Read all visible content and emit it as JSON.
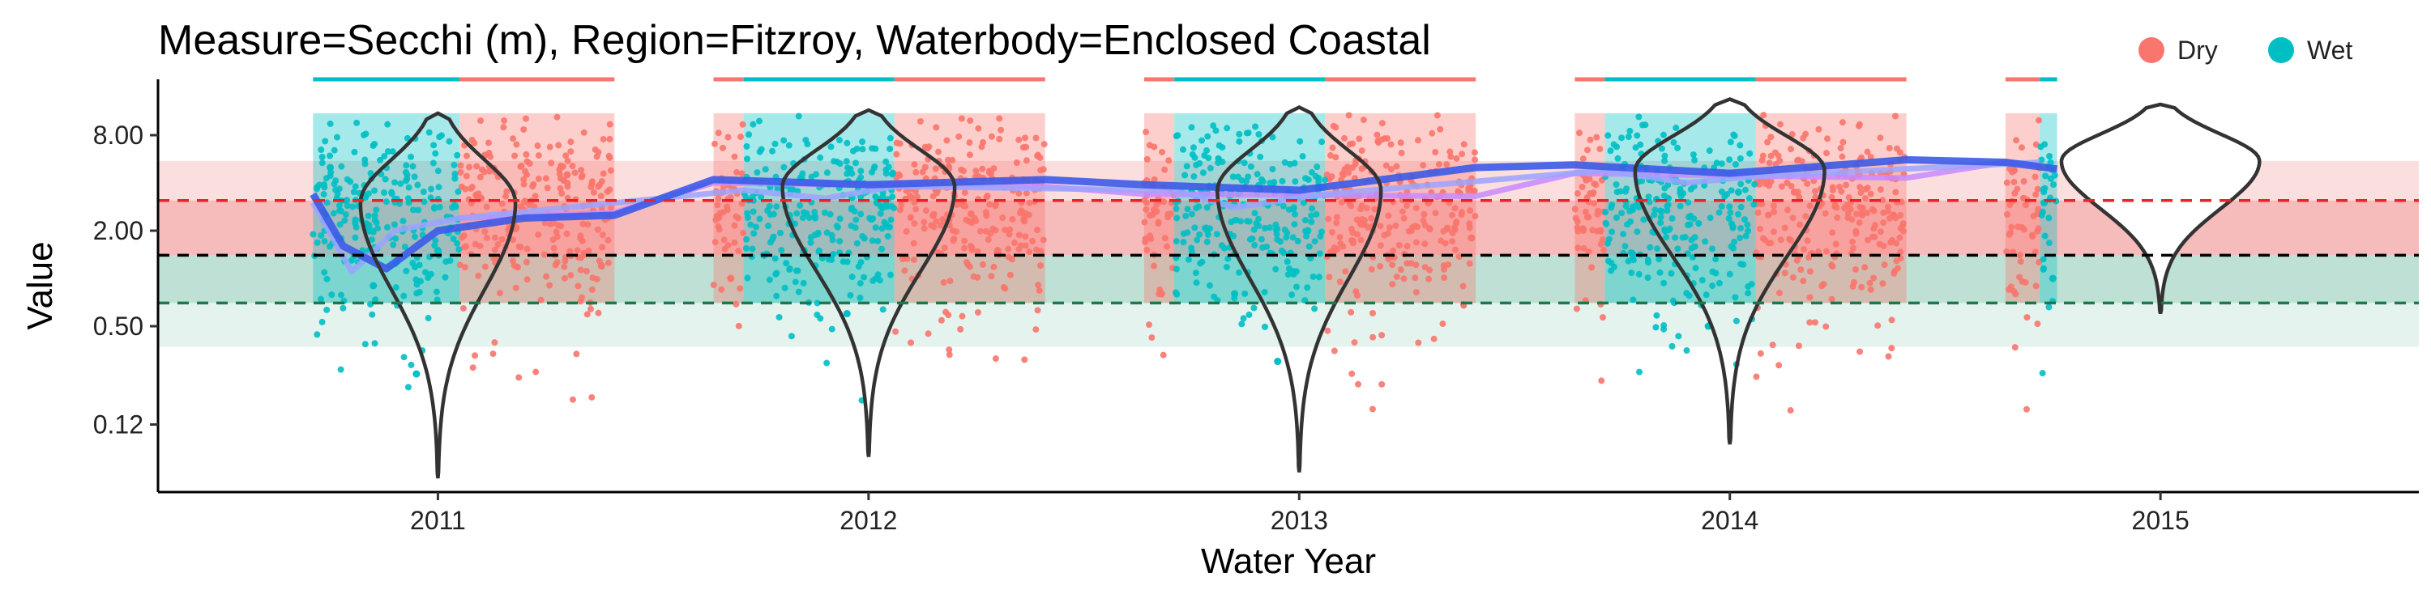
{
  "chart_data": {
    "type": "scatter",
    "title": "Measure=Secchi (m), Region=Fitzroy, Waterbody=Enclosed Coastal",
    "xlabel": "Water Year",
    "ylabel": "Value",
    "y_scale": "log2",
    "ylim": [
      0.045,
      18
    ],
    "yticks": [
      0.12,
      0.5,
      2.0,
      8.0
    ],
    "ytick_labels": [
      "0.12",
      "0.50",
      "2.00",
      "8.00"
    ],
    "xlim": [
      2010.35,
      2015.6
    ],
    "xticks": [
      2011,
      2012,
      2013,
      2014,
      2015
    ],
    "xtick_labels": [
      "2011",
      "2012",
      "2013",
      "2014",
      "2015"
    ],
    "grid": false,
    "legend": {
      "position": "top-right",
      "entries": [
        {
          "name": "Dry",
          "color": "#F8766D"
        },
        {
          "name": "Wet",
          "color": "#00BFC4"
        }
      ]
    },
    "reference_lines": [
      {
        "y": 3.1,
        "color": "#E8242A",
        "style": "dashed"
      },
      {
        "y": 1.4,
        "color": "#000000",
        "style": "dashed"
      },
      {
        "y": 0.7,
        "color": "#1A7A4C",
        "style": "dashed"
      }
    ],
    "reference_bands": [
      {
        "y": [
          3.1,
          5.5
        ],
        "color": "#F9D4D4"
      },
      {
        "y": [
          1.4,
          3.1
        ],
        "color": "#F3A4A4"
      },
      {
        "y": [
          0.7,
          1.4
        ],
        "color": "#A9D6C6"
      },
      {
        "y": [
          0.37,
          0.7
        ],
        "color": "#DCEFE8"
      }
    ],
    "seasons": [
      {
        "year": 2011,
        "wet": [
          2010.71,
          2011.05
        ],
        "dry": [
          2011.05,
          2011.41
        ]
      },
      {
        "year": 2012,
        "dry": [
          2011.64,
          2011.71
        ],
        "wet": [
          2011.71,
          2012.06
        ],
        "dry2": [
          2012.06,
          2012.41
        ]
      },
      {
        "year": 2013,
        "dry": [
          2012.64,
          2012.71
        ],
        "wet": [
          2012.71,
          2013.06
        ],
        "dry2": [
          2013.06,
          2013.41
        ]
      },
      {
        "year": 2014,
        "dry": [
          2013.64,
          2013.71
        ],
        "wet": [
          2013.71,
          2014.06
        ],
        "dry2": [
          2014.06,
          2014.41
        ]
      },
      {
        "year": 2015,
        "dry": [
          2014.64,
          2014.72
        ],
        "wet": [
          2014.72,
          2014.76
        ]
      }
    ],
    "series": [
      {
        "name": "Dry",
        "color": "#F8766D",
        "data": [
          [
            2011.1,
            3.2
          ],
          [
            2011.2,
            2.5
          ],
          [
            2011.3,
            4.5
          ],
          [
            2011.38,
            1.2
          ],
          [
            2011.66,
            3.5
          ],
          [
            2011.68,
            1.0
          ],
          [
            2012.15,
            2.5
          ],
          [
            2012.3,
            1.5
          ],
          [
            2012.4,
            4.0
          ],
          [
            2012.66,
            3.8
          ],
          [
            2012.68,
            0.8
          ],
          [
            2013.15,
            2.2
          ],
          [
            2013.3,
            3.0
          ],
          [
            2013.4,
            1.8
          ],
          [
            2013.66,
            4.5
          ],
          [
            2013.7,
            2.0
          ],
          [
            2014.15,
            3.5
          ],
          [
            2014.3,
            4.5
          ],
          [
            2014.38,
            2.5
          ],
          [
            2014.66,
            4.8
          ]
        ]
      },
      {
        "name": "Wet",
        "color": "#00BFC4",
        "data": [
          [
            2010.75,
            5.0
          ],
          [
            2010.85,
            0.9
          ],
          [
            2010.95,
            0.25
          ],
          [
            2011.0,
            1.5
          ],
          [
            2011.75,
            4.0
          ],
          [
            2011.85,
            1.5
          ],
          [
            2011.95,
            0.6
          ],
          [
            2012.02,
            3.0
          ],
          [
            2012.75,
            3.5
          ],
          [
            2012.85,
            0.8
          ],
          [
            2012.95,
            0.3
          ],
          [
            2013.02,
            2.0
          ],
          [
            2013.75,
            5.0
          ],
          [
            2013.85,
            2.0
          ],
          [
            2013.95,
            0.5
          ],
          [
            2014.02,
            3.5
          ],
          [
            2014.73,
            3.0
          ],
          [
            2014.75,
            1.0
          ]
        ]
      }
    ],
    "trend_lines": [
      {
        "name": "Dry smoother",
        "color": "#C78BFF",
        "points": [
          [
            2011.05,
            2.4
          ],
          [
            2011.41,
            2.6
          ],
          [
            2011.64,
            4.0
          ],
          [
            2012.41,
            3.8
          ],
          [
            2012.64,
            3.4
          ],
          [
            2013.41,
            3.3
          ],
          [
            2013.64,
            4.6
          ],
          [
            2014.41,
            4.3
          ],
          [
            2014.64,
            5.4
          ],
          [
            2014.72,
            5.2
          ]
        ]
      },
      {
        "name": "Wet smoother",
        "color": "#9BA3FF",
        "points": [
          [
            2010.71,
            3.0
          ],
          [
            2010.8,
            1.1
          ],
          [
            2010.9,
            2.0
          ],
          [
            2011.05,
            2.4
          ],
          [
            2011.71,
            3.6
          ],
          [
            2011.9,
            3.2
          ],
          [
            2012.06,
            3.8
          ],
          [
            2012.71,
            3.6
          ],
          [
            2012.85,
            2.8
          ],
          [
            2013.06,
            3.4
          ],
          [
            2013.71,
            4.8
          ],
          [
            2013.9,
            4.0
          ],
          [
            2014.06,
            4.4
          ],
          [
            2014.72,
            5.4
          ]
        ]
      },
      {
        "name": "Overall smoother",
        "color": "#3B5BE8",
        "points": [
          [
            2010.71,
            3.4
          ],
          [
            2010.78,
            1.6
          ],
          [
            2010.88,
            1.15
          ],
          [
            2011.0,
            2.0
          ],
          [
            2011.2,
            2.4
          ],
          [
            2011.41,
            2.5
          ],
          [
            2011.64,
            4.2
          ],
          [
            2012.0,
            3.9
          ],
          [
            2012.41,
            4.2
          ],
          [
            2012.64,
            3.9
          ],
          [
            2013.0,
            3.6
          ],
          [
            2013.41,
            5.0
          ],
          [
            2013.64,
            5.2
          ],
          [
            2014.0,
            4.6
          ],
          [
            2014.41,
            5.6
          ],
          [
            2014.64,
            5.4
          ],
          [
            2014.76,
            4.9
          ]
        ]
      }
    ],
    "violins": [
      {
        "year": 2011,
        "peak_y": 3.0,
        "max_halfwidth_years": 0.18,
        "top": 11.0,
        "bottom": 0.055
      },
      {
        "year": 2012,
        "peak_y": 3.8,
        "max_halfwidth_years": 0.2,
        "top": 11.5,
        "bottom": 0.075
      },
      {
        "year": 2013,
        "peak_y": 3.6,
        "max_halfwidth_years": 0.19,
        "top": 12.0,
        "bottom": 0.06
      },
      {
        "year": 2014,
        "peak_y": 4.8,
        "max_halfwidth_years": 0.22,
        "top": 13.5,
        "bottom": 0.09
      },
      {
        "year": 2015,
        "peak_y": 5.5,
        "max_halfwidth_years": 0.23,
        "top": 12.5,
        "bottom": 0.6
      }
    ]
  }
}
